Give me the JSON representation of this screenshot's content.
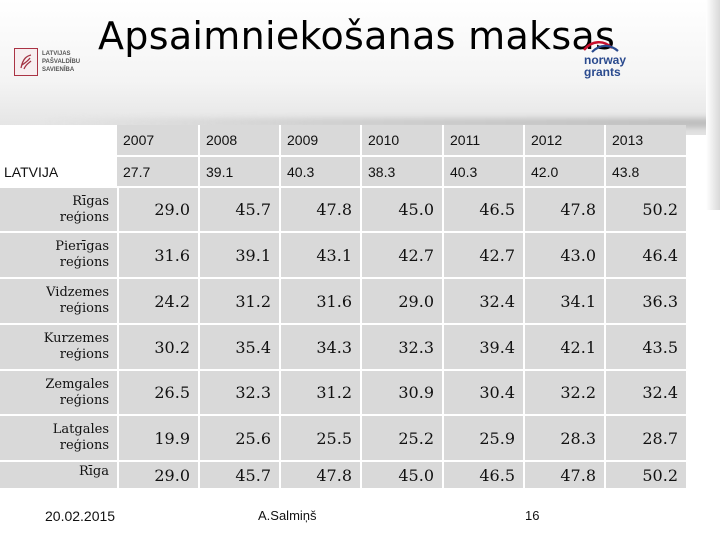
{
  "slide": {
    "title": "Apsaimniekošanas maksas",
    "logo_left": {
      "lines": [
        "LATVIJAS",
        "PAŠVALDĪBU",
        "SAVIENĪBA"
      ]
    },
    "logo_right": {
      "line1": "norway",
      "line2": "grants"
    }
  },
  "table": {
    "years": [
      "2007",
      "2008",
      "2009",
      "2010",
      "2011",
      "2012",
      "2013"
    ],
    "latvija": {
      "label": "LATVIJA",
      "values": [
        "27.7",
        "39.1",
        "40.3",
        "38.3",
        "40.3",
        "42.0",
        "43.8"
      ]
    },
    "rows": [
      {
        "label1": "Rīgas",
        "label2": "reģions",
        "values": [
          "29.0",
          "45.7",
          "47.8",
          "45.0",
          "46.5",
          "47.8",
          "50.2"
        ]
      },
      {
        "label1": "Pierīgas",
        "label2": "reģions",
        "values": [
          "31.6",
          "39.1",
          "43.1",
          "42.7",
          "42.7",
          "43.0",
          "46.4"
        ]
      },
      {
        "label1": "Vidzemes",
        "label2": "reģions",
        "values": [
          "24.2",
          "31.2",
          "31.6",
          "29.0",
          "32.4",
          "34.1",
          "36.3"
        ]
      },
      {
        "label1": "Kurzemes",
        "label2": "reģions",
        "values": [
          "30.2",
          "35.4",
          "34.3",
          "32.3",
          "39.4",
          "42.1",
          "43.5"
        ]
      },
      {
        "label1": "Zemgales",
        "label2": "reģions",
        "values": [
          "26.5",
          "32.3",
          "31.2",
          "30.9",
          "30.4",
          "32.2",
          "32.4"
        ]
      },
      {
        "label1": "Latgales",
        "label2": "reģions",
        "values": [
          "19.9",
          "25.6",
          "25.5",
          "25.2",
          "25.9",
          "28.3",
          "28.7"
        ]
      },
      {
        "label1": "Rīga",
        "label2": "",
        "values": [
          "29.0",
          "45.7",
          "47.8",
          "45.0",
          "46.5",
          "47.8",
          "50.2"
        ]
      }
    ]
  },
  "footer": {
    "date": "20.02.2015",
    "author": "A.Salmiņš",
    "page": "16"
  }
}
